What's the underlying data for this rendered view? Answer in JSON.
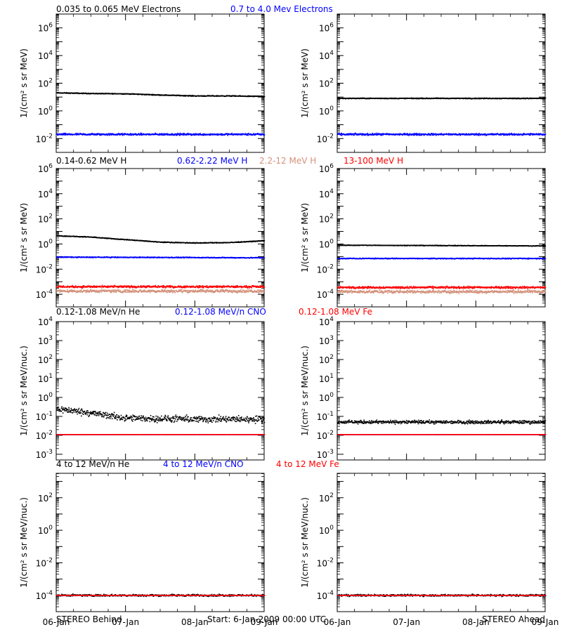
{
  "footer": {
    "left": "STEREO Behind",
    "center": "Start:  6-Jan-2009 00:00 UTC",
    "right": "STEREO Ahead"
  },
  "x_ticks": [
    "06-Jan",
    "07-Jan",
    "08-Jan",
    "09-Jan"
  ],
  "rows": [
    {
      "ylabel": "1/(cm² s sr MeV)",
      "legend": [
        {
          "text": "0.035 to 0.065 MeV Electrons",
          "color": "#000000"
        },
        {
          "text": "0.7 to 4.0 Mev Electrons",
          "color": "#0000ff"
        }
      ]
    },
    {
      "ylabel": "1/(cm² s sr MeV)",
      "legend": [
        {
          "text": "0.14-0.62 MeV H",
          "color": "#000000"
        },
        {
          "text": "0.62-2.22 MeV H",
          "color": "#0000ff"
        },
        {
          "text": "2.2-12 MeV H",
          "color": "#d2917a"
        },
        {
          "text": "13-100 MeV H",
          "color": "#ff0000"
        }
      ]
    },
    {
      "ylabel": "1/(cm² s sr MeV/nuc.)",
      "legend": [
        {
          "text": "0.12-1.08 MeV/n He",
          "color": "#000000"
        },
        {
          "text": "0.12-1.08 MeV/n CNO",
          "color": "#0000ff"
        },
        {
          "text": "0.12-1.08 MeV Fe",
          "color": "#ff0000"
        }
      ]
    },
    {
      "ylabel": "1/(cm² s sr MeV/nuc.)",
      "legend": [
        {
          "text": "4 to 12 MeV/n He",
          "color": "#000000"
        },
        {
          "text": "4 to 12 MeV/n CNO",
          "color": "#0000ff"
        },
        {
          "text": "4 to 12 MeV Fe",
          "color": "#ff0000"
        }
      ]
    }
  ],
  "chart_data": [
    {
      "type": "scatter",
      "panel": "STEREO Behind - electrons",
      "log_y": true,
      "xlim": [
        "2009-01-06",
        "2009-01-09"
      ],
      "ylim_exp": [
        -3,
        7
      ],
      "y_ticks_exp": [
        -2,
        0,
        2,
        4,
        6
      ],
      "series": [
        {
          "name": "0.035 to 0.065 MeV Electrons",
          "color": "#000000",
          "x": [
            "2009-01-06",
            "2009-01-06T12:00",
            "2009-01-07",
            "2009-01-07T12:00",
            "2009-01-08",
            "2009-01-08T12:00",
            "2009-01-09"
          ],
          "y": [
            20,
            18,
            17,
            14,
            12,
            12,
            11
          ],
          "spread_dex": 0.05
        },
        {
          "name": "0.7 to 4.0 Mev Electrons",
          "color": "#0000ff",
          "x": [
            "2009-01-06",
            "2009-01-09"
          ],
          "y": [
            0.02,
            0.02
          ],
          "spread_dex": 0.12
        }
      ]
    },
    {
      "type": "scatter",
      "panel": "STEREO Ahead - electrons",
      "log_y": true,
      "xlim": [
        "2009-01-06",
        "2009-01-09"
      ],
      "ylim_exp": [
        -3,
        7
      ],
      "y_ticks_exp": [
        -2,
        0,
        2,
        4,
        6
      ],
      "series": [
        {
          "color": "#000000",
          "x": [
            "2009-01-06",
            "2009-01-09"
          ],
          "y": [
            8,
            8
          ],
          "spread_dex": 0.05
        },
        {
          "color": "#0000ff",
          "x": [
            "2009-01-06",
            "2009-01-09"
          ],
          "y": [
            0.02,
            0.02
          ],
          "spread_dex": 0.12
        }
      ]
    },
    {
      "type": "scatter",
      "panel": "STEREO Behind - protons",
      "log_y": true,
      "xlim": [
        "2009-01-06",
        "2009-01-09"
      ],
      "ylim_exp": [
        -5,
        6
      ],
      "y_ticks_exp": [
        -4,
        -2,
        0,
        2,
        4,
        6
      ],
      "series": [
        {
          "name": "0.14-0.62 MeV H",
          "color": "#000000",
          "x": [
            "2009-01-06",
            "2009-01-06T12:00",
            "2009-01-07",
            "2009-01-07T12:00",
            "2009-01-08",
            "2009-01-08T12:00",
            "2009-01-09"
          ],
          "y": [
            4.5,
            3.5,
            2.2,
            1.4,
            1.2,
            1.3,
            1.8
          ],
          "spread_dex": 0.05
        },
        {
          "name": "0.62-2.22 MeV H",
          "color": "#0000ff",
          "x": [
            "2009-01-06",
            "2009-01-09"
          ],
          "y": [
            0.09,
            0.08
          ],
          "spread_dex": 0.06
        },
        {
          "name": "2.2-12 MeV H",
          "color": "#d2917a",
          "x": [
            "2009-01-06",
            "2009-01-09"
          ],
          "y": [
            0.00018,
            0.00018
          ],
          "spread_dex": 0.2
        },
        {
          "name": "13-100 MeV H",
          "color": "#ff0000",
          "x": [
            "2009-01-06",
            "2009-01-09"
          ],
          "y": [
            0.0004,
            0.0004
          ],
          "spread_dex": 0.14
        }
      ]
    },
    {
      "type": "scatter",
      "panel": "STEREO Ahead - protons",
      "log_y": true,
      "xlim": [
        "2009-01-06",
        "2009-01-09"
      ],
      "ylim_exp": [
        -5,
        6
      ],
      "y_ticks_exp": [
        -4,
        -2,
        0,
        2,
        4,
        6
      ],
      "series": [
        {
          "color": "#000000",
          "x": [
            "2009-01-06",
            "2009-01-09"
          ],
          "y": [
            0.8,
            0.7
          ],
          "spread_dex": 0.04
        },
        {
          "color": "#0000ff",
          "x": [
            "2009-01-06",
            "2009-01-09"
          ],
          "y": [
            0.07,
            0.07
          ],
          "spread_dex": 0.06
        },
        {
          "color": "#d2917a",
          "x": [
            "2009-01-06",
            "2009-01-09"
          ],
          "y": [
            0.00016,
            0.00016
          ],
          "spread_dex": 0.2
        },
        {
          "color": "#ff0000",
          "x": [
            "2009-01-06",
            "2009-01-09"
          ],
          "y": [
            0.00035,
            0.00035
          ],
          "spread_dex": 0.14
        }
      ]
    },
    {
      "type": "scatter",
      "panel": "STEREO Behind - heavy ions 0.12-1.08",
      "log_y": true,
      "xlim": [
        "2009-01-06",
        "2009-01-09"
      ],
      "ylim_exp": [
        -3.3,
        4
      ],
      "y_ticks_exp": [
        -3,
        -2,
        -1,
        0,
        1,
        2,
        3,
        4
      ],
      "series": [
        {
          "name": "0.12-1.08 MeV/n He",
          "color": "#000000",
          "x": [
            "2009-01-06",
            "2009-01-06T12:00",
            "2009-01-07",
            "2009-01-08",
            "2009-01-09"
          ],
          "y": [
            0.25,
            0.15,
            0.08,
            0.07,
            0.07
          ],
          "spread_dex": 0.3
        },
        {
          "name": "0.12-1.08 MeV/n CNO",
          "color": "#0000ff",
          "x": [
            "2009-01-06",
            "2009-01-09"
          ],
          "y": [
            0.011,
            0.011
          ],
          "spread_dex": 0
        },
        {
          "name": "0.12-1.08 MeV Fe",
          "color": "#ff0000",
          "x": [
            "2009-01-06",
            "2009-01-09"
          ],
          "y": [
            0.011,
            0.011
          ],
          "spread_dex": 0
        }
      ]
    },
    {
      "type": "scatter",
      "panel": "STEREO Ahead - heavy ions 0.12-1.08",
      "log_y": true,
      "xlim": [
        "2009-01-06",
        "2009-01-09"
      ],
      "ylim_exp": [
        -3.3,
        4
      ],
      "y_ticks_exp": [
        -3,
        -2,
        -1,
        0,
        1,
        2,
        3,
        4
      ],
      "series": [
        {
          "color": "#000000",
          "x": [
            "2009-01-06",
            "2009-01-09"
          ],
          "y": [
            0.05,
            0.05
          ],
          "spread_dex": 0.15
        },
        {
          "color": "#0000ff",
          "x": [
            "2009-01-06",
            "2009-01-09"
          ],
          "y": [
            0.011,
            0.011
          ],
          "spread_dex": 0
        },
        {
          "color": "#ff0000",
          "x": [
            "2009-01-06",
            "2009-01-09"
          ],
          "y": [
            0.011,
            0.011
          ],
          "spread_dex": 0
        }
      ]
    },
    {
      "type": "scatter",
      "panel": "STEREO Behind - heavy ions 4-12",
      "log_y": true,
      "xlim": [
        "2009-01-06",
        "2009-01-09"
      ],
      "ylim_exp": [
        -5,
        3.5
      ],
      "y_ticks_exp": [
        -4,
        -2,
        0,
        2
      ],
      "series": [
        {
          "name": "4 to 12 MeV/n He",
          "color": "#000000",
          "x": [
            "2009-01-06",
            "2009-01-09"
          ],
          "y": [
            0.0001,
            0.0001
          ],
          "spread_dex": 0.1
        },
        {
          "name": "4 to 12 MeV/n CNO",
          "color": "#0000ff",
          "x": [
            "2009-01-06",
            "2009-01-09"
          ],
          "y": [
            0.0001,
            0.0001
          ],
          "spread_dex": 0
        },
        {
          "name": "4 to 12 MeV Fe",
          "color": "#ff0000",
          "x": [
            "2009-01-06",
            "2009-01-09"
          ],
          "y": [
            0.0001,
            0.0001
          ],
          "spread_dex": 0
        }
      ]
    },
    {
      "type": "scatter",
      "panel": "STEREO Ahead - heavy ions 4-12",
      "log_y": true,
      "xlim": [
        "2009-01-06",
        "2009-01-09"
      ],
      "ylim_exp": [
        -5,
        3.5
      ],
      "y_ticks_exp": [
        -4,
        -2,
        0,
        2
      ],
      "series": [
        {
          "color": "#000000",
          "x": [
            "2009-01-06",
            "2009-01-09"
          ],
          "y": [
            0.0001,
            0.0001
          ],
          "spread_dex": 0.1
        },
        {
          "color": "#0000ff",
          "x": [
            "2009-01-06",
            "2009-01-09"
          ],
          "y": [
            0.0001,
            0.0001
          ],
          "spread_dex": 0
        },
        {
          "color": "#ff0000",
          "x": [
            "2009-01-06",
            "2009-01-09"
          ],
          "y": [
            0.0001,
            0.0001
          ],
          "spread_dex": 0
        }
      ]
    }
  ]
}
